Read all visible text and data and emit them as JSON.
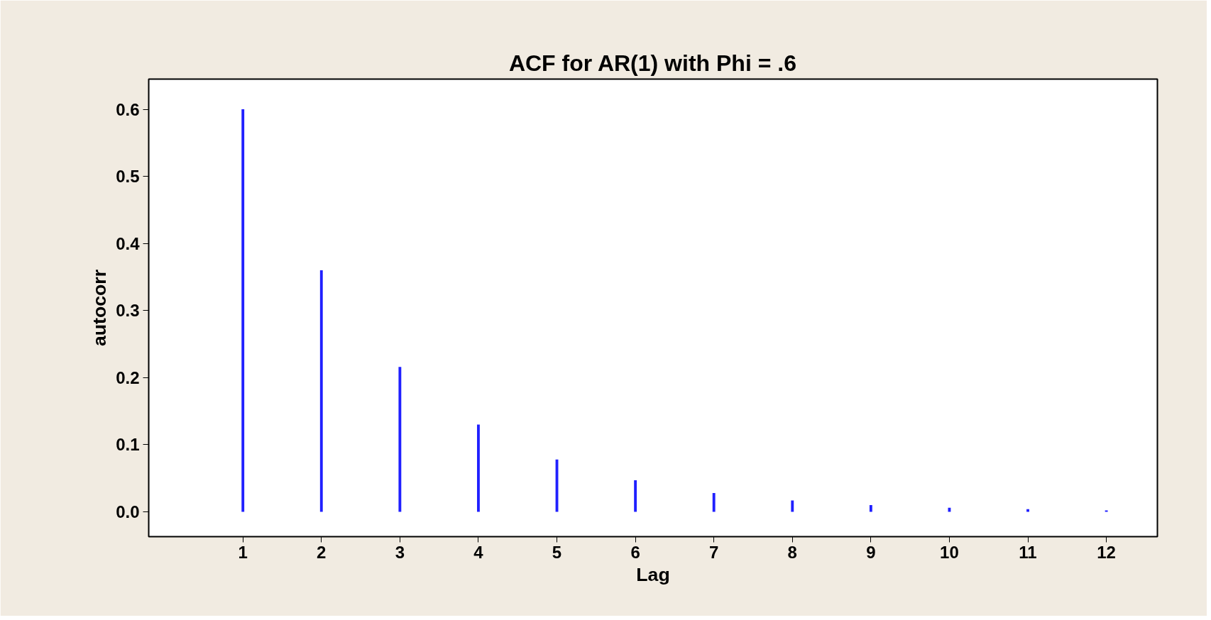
{
  "chart_data": {
    "type": "bar",
    "title": "ACF for AR(1) with Phi = .6",
    "xlabel": "Lag",
    "ylabel": "autocorr",
    "x": [
      1,
      2,
      3,
      4,
      5,
      6,
      7,
      8,
      9,
      10,
      11,
      12
    ],
    "values": [
      0.6,
      0.36,
      0.216,
      0.13,
      0.078,
      0.047,
      0.028,
      0.017,
      0.01,
      0.006,
      0.004,
      0.002
    ],
    "color": "#2020ff",
    "xlim": [
      -0.2,
      12.65
    ],
    "ylim": [
      -0.037,
      0.645
    ],
    "xticks": [
      1,
      2,
      3,
      4,
      5,
      6,
      7,
      8,
      9,
      10,
      11,
      12
    ],
    "yticks": [
      {
        "value": 0,
        "label": "0.0"
      },
      0.1,
      0.2,
      0.3,
      0.4,
      0.5,
      0.6
    ],
    "grid": false
  }
}
